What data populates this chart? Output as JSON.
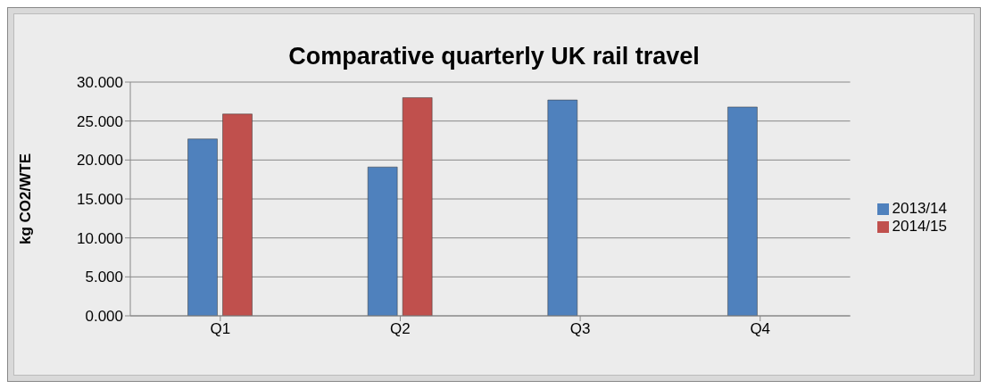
{
  "chart_data": {
    "type": "bar",
    "title": "Comparative quarterly UK rail travel",
    "ylabel": "kg CO2/WTE",
    "categories": [
      "Q1",
      "Q2",
      "Q3",
      "Q4"
    ],
    "series": [
      {
        "name": "2013/14",
        "color": "#4f81bd",
        "values": [
          22.7,
          19.1,
          27.7,
          26.8
        ]
      },
      {
        "name": "2014/15",
        "color": "#c0504d",
        "values": [
          25.9,
          28.0,
          null,
          null
        ]
      }
    ],
    "ylim": [
      0,
      30
    ],
    "yticks": [
      {
        "value": 0,
        "label": "0.000"
      },
      {
        "value": 5,
        "label": "5.000"
      },
      {
        "value": 10,
        "label": "10.000"
      },
      {
        "value": 15,
        "label": "15.000"
      },
      {
        "value": 20,
        "label": "20.000"
      },
      {
        "value": 25,
        "label": "25.000"
      },
      {
        "value": 30,
        "label": "30.000"
      }
    ],
    "grid": "y",
    "legend": "right"
  }
}
